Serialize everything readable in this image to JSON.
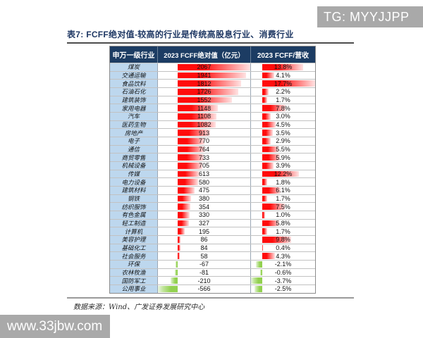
{
  "watermarks": {
    "top_right": "TG: MYYJJPP",
    "bottom_left": "www.33jbw.com"
  },
  "report": {
    "title": "表7: FCFF绝对值-较高的行业是传统高股息行业、消费行业",
    "source": "数据来源：Wind、广发证券发展研究中心"
  },
  "table": {
    "headers": [
      "申万一级行业",
      "2023 FCFF绝对值（亿元）",
      "2023 FCFF/营收"
    ]
  },
  "chart_data": {
    "type": "table",
    "title": "表7: FCFF绝对值-较高的行业是传统高股息行业、消费行业",
    "columns": [
      "申万一级行业",
      "2023 FCFF绝对值（亿元）",
      "2023 FCFF/营收"
    ],
    "fcff_axis": {
      "min": -566,
      "max": 2067
    },
    "ratio_axis": {
      "min": -3.7,
      "max": 17.7
    },
    "bar_colors": {
      "positive": "#FF0000",
      "negative": "#92D050"
    },
    "header_bg": "#1C3C63",
    "industry_col_bg": "#BDD7EE",
    "rows": [
      {
        "industry": "煤炭",
        "fcff": 2067,
        "ratio_pct": 13.8
      },
      {
        "industry": "交通运输",
        "fcff": 1941,
        "ratio_pct": 4.1
      },
      {
        "industry": "食品饮料",
        "fcff": 1812,
        "ratio_pct": 17.7
      },
      {
        "industry": "石油石化",
        "fcff": 1726,
        "ratio_pct": 2.2
      },
      {
        "industry": "建筑装饰",
        "fcff": 1552,
        "ratio_pct": 1.7
      },
      {
        "industry": "家用电器",
        "fcff": 1148,
        "ratio_pct": 7.8
      },
      {
        "industry": "汽车",
        "fcff": 1108,
        "ratio_pct": 3.0
      },
      {
        "industry": "医药生物",
        "fcff": 1082,
        "ratio_pct": 4.5
      },
      {
        "industry": "房地产",
        "fcff": 913,
        "ratio_pct": 3.5
      },
      {
        "industry": "电子",
        "fcff": 770,
        "ratio_pct": 2.9
      },
      {
        "industry": "通信",
        "fcff": 764,
        "ratio_pct": 5.5
      },
      {
        "industry": "商贸零售",
        "fcff": 733,
        "ratio_pct": 5.9
      },
      {
        "industry": "机械设备",
        "fcff": 705,
        "ratio_pct": 3.9
      },
      {
        "industry": "传媒",
        "fcff": 613,
        "ratio_pct": 12.2
      },
      {
        "industry": "电力设备",
        "fcff": 580,
        "ratio_pct": 1.8
      },
      {
        "industry": "建筑材料",
        "fcff": 475,
        "ratio_pct": 6.1
      },
      {
        "industry": "钢铁",
        "fcff": 380,
        "ratio_pct": 1.7
      },
      {
        "industry": "纺织服饰",
        "fcff": 354,
        "ratio_pct": 7.5
      },
      {
        "industry": "有色金属",
        "fcff": 330,
        "ratio_pct": 1.0
      },
      {
        "industry": "轻工制造",
        "fcff": 327,
        "ratio_pct": 5.8
      },
      {
        "industry": "计算机",
        "fcff": 195,
        "ratio_pct": 1.7
      },
      {
        "industry": "美容护理",
        "fcff": 86,
        "ratio_pct": 9.8
      },
      {
        "industry": "基础化工",
        "fcff": 84,
        "ratio_pct": 0.4
      },
      {
        "industry": "社会服务",
        "fcff": 58,
        "ratio_pct": 4.3
      },
      {
        "industry": "环保",
        "fcff": -67,
        "ratio_pct": -2.1
      },
      {
        "industry": "农林牧渔",
        "fcff": -81,
        "ratio_pct": -0.6
      },
      {
        "industry": "国防军工",
        "fcff": -210,
        "ratio_pct": -3.7
      },
      {
        "industry": "公用事业",
        "fcff": -566,
        "ratio_pct": -2.5
      }
    ]
  }
}
